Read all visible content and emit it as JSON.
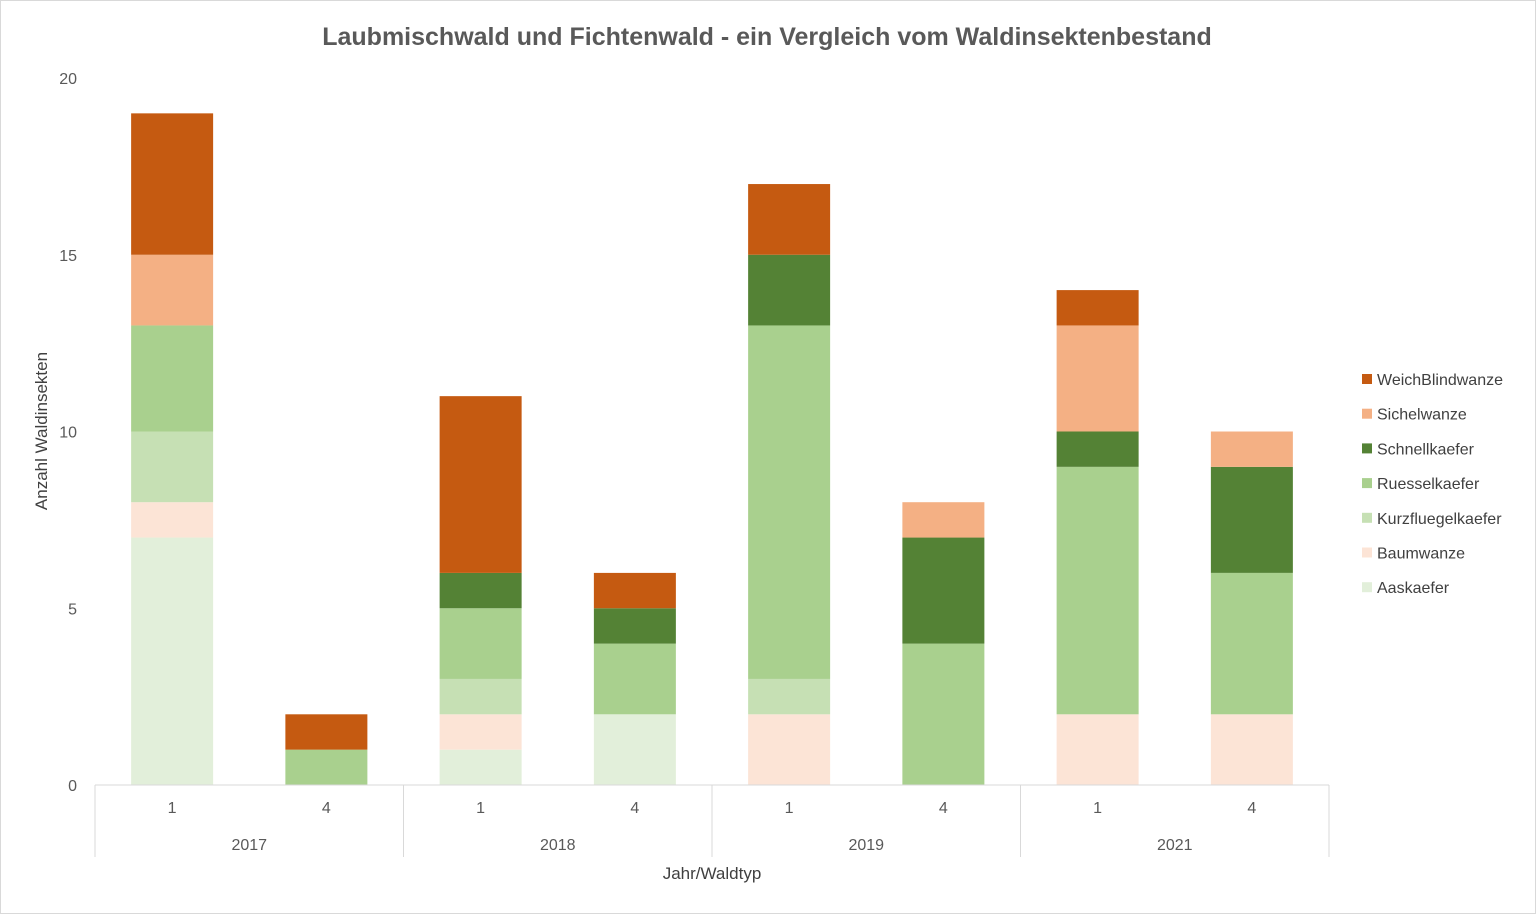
{
  "chart_data": {
    "type": "bar",
    "stacked": true,
    "title": "Laubmischwald und Fichtenwald - ein Vergleich vom Waldinsektenbestand",
    "xlabel": "Jahr/Waldtyp",
    "ylabel": "Anzahl Waldinsekten",
    "ylim": [
      0,
      20
    ],
    "yticks": [
      "0",
      "5",
      "10",
      "15",
      "20"
    ],
    "grid": false,
    "legend_position": "right",
    "groups": [
      {
        "label": "2017",
        "categories": [
          "1",
          "4"
        ]
      },
      {
        "label": "2018",
        "categories": [
          "1",
          "4"
        ]
      },
      {
        "label": "2019",
        "categories": [
          "1",
          "4"
        ]
      },
      {
        "label": "2021",
        "categories": [
          "1",
          "4"
        ]
      }
    ],
    "series": [
      {
        "name": "Aaskaefer",
        "color": "#e2efda",
        "values": [
          7,
          0,
          1,
          2,
          0,
          0,
          0,
          0
        ]
      },
      {
        "name": "Baumwanze",
        "color": "#fce4d6",
        "values": [
          1,
          0,
          1,
          0,
          2,
          0,
          2,
          2
        ]
      },
      {
        "name": "Kurzfluegelkaefer",
        "color": "#c6e0b4",
        "values": [
          2,
          0,
          1,
          0,
          1,
          0,
          0,
          0
        ]
      },
      {
        "name": "Ruesselkaefer",
        "color": "#a9d08e",
        "values": [
          3,
          1,
          2,
          2,
          10,
          4,
          7,
          4
        ]
      },
      {
        "name": "Schnellkaefer",
        "color": "#548235",
        "values": [
          0,
          0,
          1,
          1,
          2,
          3,
          1,
          3
        ]
      },
      {
        "name": "Sichelwanze",
        "color": "#f4b084",
        "values": [
          2,
          0,
          0,
          0,
          0,
          1,
          3,
          1
        ]
      },
      {
        "name": "WeichBlindwanze",
        "color": "#c55a11",
        "values": [
          4,
          1,
          5,
          1,
          2,
          0,
          1,
          0
        ]
      }
    ]
  }
}
